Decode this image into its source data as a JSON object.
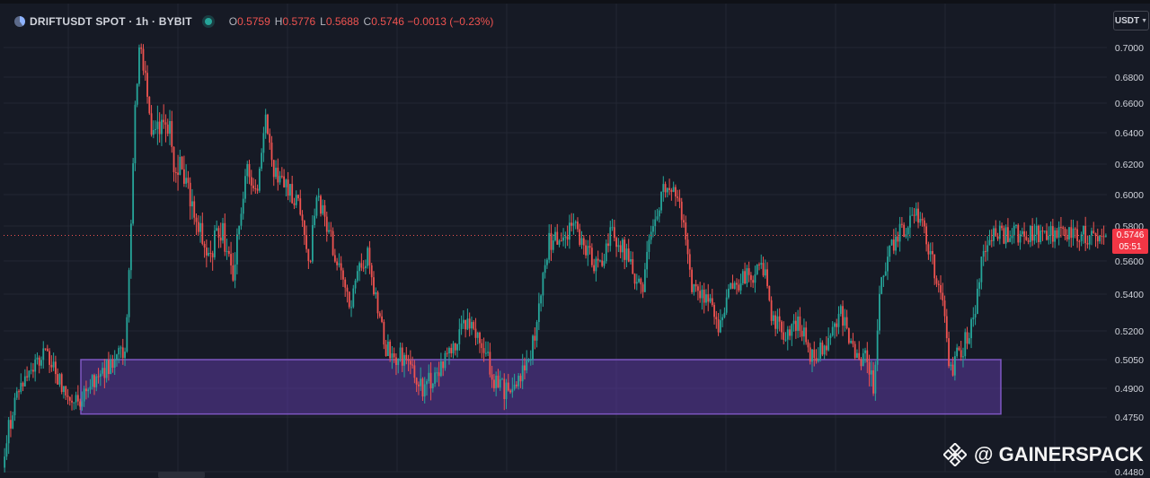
{
  "legend": {
    "title": "DRIFTUSDT SPOT · 1h · BYBIT",
    "o_label": "O",
    "o_value": "0.5759",
    "h_label": "H",
    "h_value": "0.5776",
    "l_label": "L",
    "l_value": "0.5688",
    "c_label": "C",
    "c_value": "0.5746 −0.0013 (−0.23%)"
  },
  "currency_button": {
    "label": "USDT"
  },
  "price_label": {
    "price": "0.5746",
    "countdown": "05:51"
  },
  "watermark": {
    "text": "@ GAINERSPACK"
  },
  "colors": {
    "background": "#161a25",
    "grid": "#232734",
    "up": "#26a69a",
    "down": "#ef5350",
    "zone_fill": "#5c3aa0",
    "zone_border": "#7e57c2",
    "axis_text": "#d1d4dc"
  },
  "chart_data": {
    "type": "candlestick",
    "symbol": "DRIFTUSDT",
    "interval": "1h",
    "exchange": "BYBIT",
    "y_ticks": [
      0.7,
      0.68,
      0.66,
      0.64,
      0.62,
      0.6,
      0.58,
      0.56,
      0.54,
      0.52,
      0.505,
      0.49,
      0.475,
      0.448
    ],
    "y_tick_labels": [
      "0.7000",
      "0.6800",
      "0.6600",
      "0.6400",
      "0.6200",
      "0.6000",
      "0.5800",
      "0.5600",
      "0.5400",
      "0.5200",
      "0.5050",
      "0.4900",
      "0.4750",
      "0.4480"
    ],
    "ylim": [
      0.446,
      0.716
    ],
    "last_price": 0.5746,
    "ohlc": {
      "open": 0.5759,
      "high": 0.5776,
      "low": 0.5688,
      "close": 0.5746,
      "change": -0.0013,
      "change_pct": -0.23
    },
    "support_zone": {
      "from": 0.4775,
      "to": 0.505,
      "start_bar": 41,
      "end_bar": 519
    },
    "bar_count": 541,
    "price_path": [
      [
        0,
        0.45
      ],
      [
        20,
        0.49
      ],
      [
        50,
        0.51
      ],
      [
        80,
        0.48
      ],
      [
        110,
        0.497
      ],
      [
        140,
        0.51
      ],
      [
        146,
        0.58
      ],
      [
        150,
        0.65
      ],
      [
        155,
        0.705
      ],
      [
        162,
        0.68
      ],
      [
        170,
        0.635
      ],
      [
        185,
        0.65
      ],
      [
        195,
        0.62
      ],
      [
        205,
        0.61
      ],
      [
        215,
        0.59
      ],
      [
        230,
        0.56
      ],
      [
        245,
        0.58
      ],
      [
        260,
        0.555
      ],
      [
        275,
        0.615
      ],
      [
        285,
        0.6
      ],
      [
        295,
        0.65
      ],
      [
        305,
        0.615
      ],
      [
        320,
        0.605
      ],
      [
        335,
        0.59
      ],
      [
        345,
        0.56
      ],
      [
        352,
        0.6
      ],
      [
        365,
        0.578
      ],
      [
        375,
        0.56
      ],
      [
        390,
        0.53
      ],
      [
        400,
        0.555
      ],
      [
        410,
        0.565
      ],
      [
        420,
        0.53
      ],
      [
        430,
        0.51
      ],
      [
        450,
        0.505
      ],
      [
        470,
        0.49
      ],
      [
        490,
        0.5
      ],
      [
        505,
        0.51
      ],
      [
        520,
        0.525
      ],
      [
        535,
        0.515
      ],
      [
        550,
        0.495
      ],
      [
        565,
        0.487
      ],
      [
        580,
        0.495
      ],
      [
        590,
        0.505
      ],
      [
        600,
        0.53
      ],
      [
        610,
        0.57
      ],
      [
        625,
        0.575
      ],
      [
        640,
        0.58
      ],
      [
        650,
        0.57
      ],
      [
        665,
        0.555
      ],
      [
        680,
        0.575
      ],
      [
        690,
        0.57
      ],
      [
        700,
        0.56
      ],
      [
        715,
        0.54
      ],
      [
        725,
        0.58
      ],
      [
        740,
        0.605
      ],
      [
        755,
        0.6
      ],
      [
        770,
        0.545
      ],
      [
        785,
        0.54
      ],
      [
        800,
        0.52
      ],
      [
        815,
        0.545
      ],
      [
        830,
        0.55
      ],
      [
        850,
        0.555
      ],
      [
        860,
        0.525
      ],
      [
        875,
        0.52
      ],
      [
        890,
        0.525
      ],
      [
        905,
        0.505
      ],
      [
        920,
        0.515
      ],
      [
        935,
        0.53
      ],
      [
        950,
        0.51
      ],
      [
        965,
        0.505
      ],
      [
        972,
        0.49
      ],
      [
        980,
        0.545
      ],
      [
        990,
        0.565
      ],
      [
        1000,
        0.575
      ],
      [
        1010,
        0.58
      ],
      [
        1020,
        0.59
      ],
      [
        1030,
        0.575
      ],
      [
        1040,
        0.555
      ],
      [
        1050,
        0.53
      ],
      [
        1058,
        0.5
      ],
      [
        1070,
        0.51
      ],
      [
        1085,
        0.525
      ],
      [
        1092,
        0.56
      ],
      [
        1100,
        0.575
      ]
    ],
    "volatility_regimes": [
      [
        0,
        0.006
      ],
      [
        140,
        0.008
      ],
      [
        150,
        0.013
      ],
      [
        175,
        0.01
      ],
      [
        230,
        0.007
      ],
      [
        600,
        0.007
      ],
      [
        1100,
        0.007
      ]
    ]
  }
}
